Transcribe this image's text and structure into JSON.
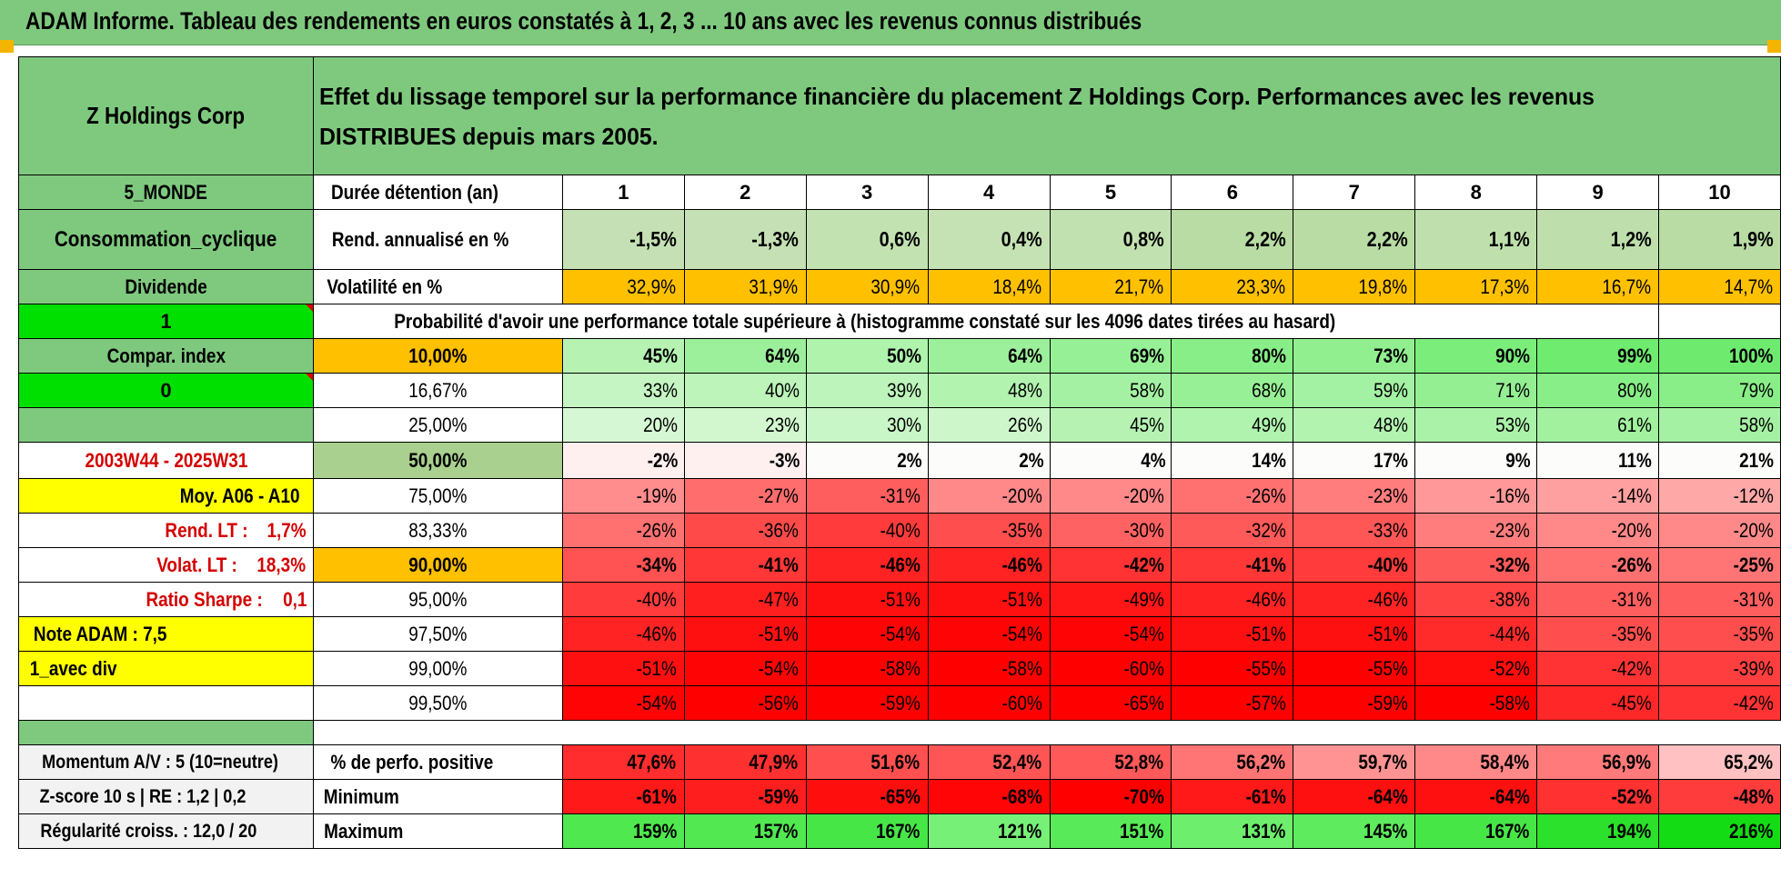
{
  "title": "ADAM Informe. Tableau des rendements en euros constatés à 1, 2, 3 ... 10 ans avec les revenus connus distribués",
  "fund_name": "Z Holdings Corp",
  "headline": "Effet du lissage temporel sur la performance financière du placement Z Holdings Corp. Performances avec les revenus DISTRIBUES depuis mars 2005.",
  "side_labels": {
    "region": "5_MONDE",
    "sector": "Consommation_cyclique",
    "income": "Dividende",
    "flag1": "1",
    "compar_index": "Compar. index",
    "flag0": "0",
    "blank": "",
    "period": "2003W44 - 2025W31",
    "moy": "Moy. A06 - A10",
    "rend_lt_label": "Rend. LT :",
    "rend_lt_value": "1,7%",
    "volat_lt_label": "Volat. LT :",
    "volat_lt_value": "18,3%",
    "sharpe_label": "Ratio Sharpe :",
    "sharpe_value": "0,1",
    "note": "Note ADAM : 7,5",
    "avec_div": "1_avec div"
  },
  "header_row": {
    "label": "Durée détention (an)",
    "years": [
      "1",
      "2",
      "3",
      "4",
      "5",
      "6",
      "7",
      "8",
      "9",
      "10"
    ]
  },
  "rend_row": {
    "label": "Rend. annualisé en %",
    "values": [
      "-1,5%",
      "-1,3%",
      "0,6%",
      "0,4%",
      "0,8%",
      "2,2%",
      "2,2%",
      "1,1%",
      "1,2%",
      "1,9%"
    ]
  },
  "vol_row": {
    "label": "Volatilité en %",
    "values": [
      "32,9%",
      "31,9%",
      "30,9%",
      "18,4%",
      "21,7%",
      "23,3%",
      "19,8%",
      "17,3%",
      "16,7%",
      "14,7%"
    ]
  },
  "prob_title": "Probabilité d'avoir une performance totale supérieure à (histogramme constaté sur les 4096 dates tirées au hasard)",
  "prob_rows": [
    {
      "threshold": "10,00%",
      "values": [
        "45%",
        "64%",
        "50%",
        "64%",
        "69%",
        "80%",
        "73%",
        "90%",
        "99%",
        "100%"
      ]
    },
    {
      "threshold": "16,67%",
      "values": [
        "33%",
        "40%",
        "39%",
        "48%",
        "58%",
        "68%",
        "59%",
        "71%",
        "80%",
        "79%"
      ]
    },
    {
      "threshold": "25,00%",
      "values": [
        "20%",
        "23%",
        "30%",
        "26%",
        "45%",
        "49%",
        "48%",
        "53%",
        "61%",
        "58%"
      ]
    },
    {
      "threshold": "50,00%",
      "values": [
        "-2%",
        "-3%",
        "2%",
        "2%",
        "4%",
        "14%",
        "17%",
        "9%",
        "11%",
        "21%"
      ]
    },
    {
      "threshold": "75,00%",
      "values": [
        "-19%",
        "-27%",
        "-31%",
        "-20%",
        "-20%",
        "-26%",
        "-23%",
        "-16%",
        "-14%",
        "-12%"
      ]
    },
    {
      "threshold": "83,33%",
      "values": [
        "-26%",
        "-36%",
        "-40%",
        "-35%",
        "-30%",
        "-32%",
        "-33%",
        "-23%",
        "-20%",
        "-20%"
      ]
    },
    {
      "threshold": "90,00%",
      "values": [
        "-34%",
        "-41%",
        "-46%",
        "-46%",
        "-42%",
        "-41%",
        "-40%",
        "-32%",
        "-26%",
        "-25%"
      ]
    },
    {
      "threshold": "95,00%",
      "values": [
        "-40%",
        "-47%",
        "-51%",
        "-51%",
        "-49%",
        "-46%",
        "-46%",
        "-38%",
        "-31%",
        "-31%"
      ]
    },
    {
      "threshold": "97,50%",
      "values": [
        "-46%",
        "-51%",
        "-54%",
        "-54%",
        "-54%",
        "-51%",
        "-51%",
        "-44%",
        "-35%",
        "-35%"
      ]
    },
    {
      "threshold": "99,00%",
      "values": [
        "-51%",
        "-54%",
        "-58%",
        "-58%",
        "-60%",
        "-55%",
        "-55%",
        "-52%",
        "-42%",
        "-39%"
      ]
    },
    {
      "threshold": "99,50%",
      "values": [
        "-54%",
        "-56%",
        "-59%",
        "-60%",
        "-65%",
        "-57%",
        "-59%",
        "-58%",
        "-45%",
        "-42%"
      ]
    }
  ],
  "stats_rows": [
    {
      "left": "Momentum A/V : 5 (10=neutre)",
      "label": "% de perfo. positive",
      "values": [
        "47,6%",
        "47,9%",
        "51,6%",
        "52,4%",
        "52,8%",
        "56,2%",
        "59,7%",
        "58,4%",
        "56,9%",
        "65,2%"
      ]
    },
    {
      "left": "Z-score 10 s | RE : 1,2 | 0,2",
      "label": "Minimum",
      "values": [
        "-61%",
        "-59%",
        "-65%",
        "-68%",
        "-70%",
        "-61%",
        "-64%",
        "-64%",
        "-52%",
        "-48%"
      ]
    },
    {
      "left": "Régularité croiss. : 12,0 / 20",
      "label": "Maximum",
      "values": [
        "159%",
        "157%",
        "167%",
        "121%",
        "151%",
        "131%",
        "145%",
        "167%",
        "194%",
        "216%"
      ]
    }
  ],
  "colors": {
    "header_green": "#7fc97f",
    "bright_green": "#00e000",
    "yellow": "#ffff00",
    "orange": "#ffc000",
    "rend_green": "#c5e0b4",
    "label_red": "#d40000"
  }
}
